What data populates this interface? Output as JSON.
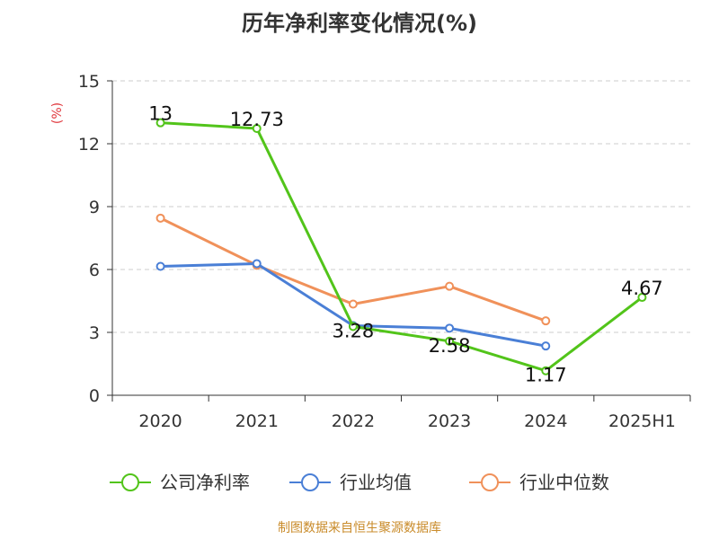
{
  "chart_data": {
    "type": "line",
    "title": "历年净利率变化情况(%)",
    "ylabel": "(%)",
    "categories": [
      "2020",
      "2021",
      "2022",
      "2023",
      "2024",
      "2025H1"
    ],
    "ylim": [
      0,
      15
    ],
    "yticks": [
      0,
      3,
      6,
      9,
      12,
      15
    ],
    "grid": true,
    "legend_position": "bottom",
    "series": [
      {
        "name": "公司净利率",
        "color": "#52c41a",
        "values": [
          13,
          12.73,
          3.28,
          2.58,
          1.17,
          4.67
        ],
        "labels": [
          "13",
          "12.73",
          "3.28",
          "2.58",
          "1.17",
          "4.67"
        ]
      },
      {
        "name": "行业均值",
        "color": "#4a7fd6",
        "values": [
          6.15,
          6.28,
          3.32,
          3.2,
          2.35,
          null
        ]
      },
      {
        "name": "行业中位数",
        "color": "#f0915a",
        "values": [
          8.45,
          6.2,
          4.35,
          5.2,
          3.55,
          null
        ]
      }
    ]
  },
  "source": "制图数据来自恒生聚源数据库"
}
